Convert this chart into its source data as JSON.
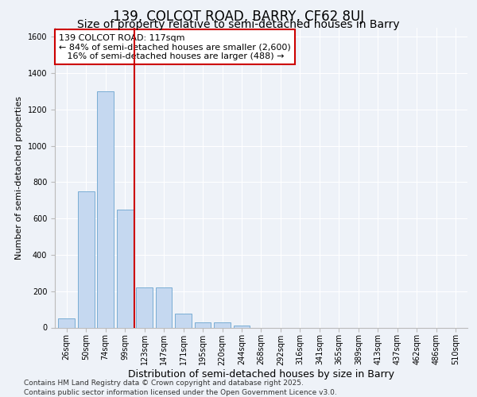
{
  "title": "139, COLCOT ROAD, BARRY, CF62 8UJ",
  "subtitle": "Size of property relative to semi-detached houses in Barry",
  "xlabel": "Distribution of semi-detached houses by size in Barry",
  "ylabel": "Number of semi-detached properties",
  "categories": [
    "26sqm",
    "50sqm",
    "74sqm",
    "99sqm",
    "123sqm",
    "147sqm",
    "171sqm",
    "195sqm",
    "220sqm",
    "244sqm",
    "268sqm",
    "292sqm",
    "316sqm",
    "341sqm",
    "365sqm",
    "389sqm",
    "413sqm",
    "437sqm",
    "462sqm",
    "486sqm",
    "510sqm"
  ],
  "values": [
    50,
    750,
    1300,
    650,
    220,
    220,
    75,
    30,
    30,
    10,
    0,
    0,
    0,
    0,
    0,
    0,
    0,
    0,
    0,
    0,
    0
  ],
  "bar_color": "#c5d8f0",
  "bar_edge_color": "#7aadd4",
  "vline_x": 3.5,
  "vline_color": "#cc0000",
  "annotation_text": "139 COLCOT ROAD: 117sqm\n← 84% of semi-detached houses are smaller (2,600)\n   16% of semi-detached houses are larger (488) →",
  "annotation_box_color": "#ffffff",
  "annotation_box_edge": "#cc0000",
  "ylim": [
    0,
    1650
  ],
  "yticks": [
    0,
    200,
    400,
    600,
    800,
    1000,
    1200,
    1400,
    1600
  ],
  "background_color": "#eef2f8",
  "grid_color": "#ffffff",
  "footer": "Contains HM Land Registry data © Crown copyright and database right 2025.\nContains public sector information licensed under the Open Government Licence v3.0.",
  "title_fontsize": 12,
  "subtitle_fontsize": 10,
  "xlabel_fontsize": 9,
  "ylabel_fontsize": 8,
  "tick_fontsize": 7,
  "annotation_fontsize": 8,
  "footer_fontsize": 6.5
}
